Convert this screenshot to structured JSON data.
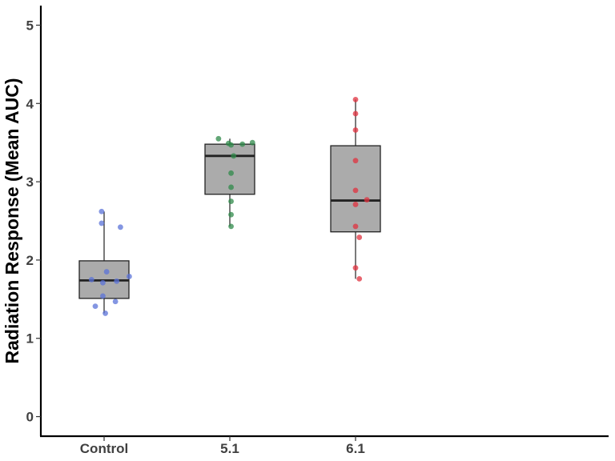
{
  "chart_data": {
    "type": "box",
    "title": "",
    "xlabel": "",
    "ylabel": "Radiation Response (Mean AUC)",
    "categories": [
      "Control",
      "5.1",
      "6.1"
    ],
    "ylim": [
      -0.25,
      5.25
    ],
    "yticks": [
      "0",
      "1",
      "2",
      "3",
      "4",
      "5"
    ],
    "grid": false,
    "legend": "none",
    "boxes": [
      {
        "category": "Control",
        "q1": 1.51,
        "median": 1.74,
        "q3": 1.99,
        "whisker_low": 1.32,
        "whisker_high": 2.62,
        "color": "#5b73d8"
      },
      {
        "category": "5.1",
        "q1": 2.84,
        "median": 3.33,
        "q3": 3.48,
        "whisker_low": 2.43,
        "whisker_high": 3.55,
        "color": "#2f8a4a"
      },
      {
        "category": "6.1",
        "q1": 2.36,
        "median": 2.76,
        "q3": 3.46,
        "whisker_low": 1.76,
        "whisker_high": 4.05,
        "color": "#e0323f"
      }
    ],
    "points": [
      {
        "category": "Control",
        "values": [
          2.62,
          2.47,
          2.42,
          1.85,
          1.79,
          1.75,
          1.73,
          1.71,
          1.54,
          1.47,
          1.41,
          1.32
        ],
        "jitter": [
          -0.02,
          -0.02,
          0.13,
          0.02,
          0.2,
          -0.1,
          0.1,
          -0.01,
          -0.01,
          0.09,
          -0.07,
          0.01
        ]
      },
      {
        "category": "5.1",
        "values": [
          3.55,
          3.5,
          3.49,
          3.48,
          3.47,
          3.33,
          3.11,
          2.93,
          2.75,
          2.58,
          2.43
        ],
        "jitter": [
          -0.09,
          0.18,
          -0.01,
          0.1,
          0.01,
          0.03,
          0.01,
          0.01,
          0.01,
          0.01,
          0.01
        ]
      },
      {
        "category": "6.1",
        "values": [
          4.05,
          3.87,
          3.66,
          3.27,
          2.89,
          2.77,
          2.71,
          2.43,
          2.29,
          1.9,
          1.76
        ],
        "jitter": [
          0.0,
          0.0,
          0.0,
          0.0,
          0.0,
          0.09,
          0.0,
          0.0,
          0.03,
          0.0,
          0.03
        ]
      }
    ]
  }
}
